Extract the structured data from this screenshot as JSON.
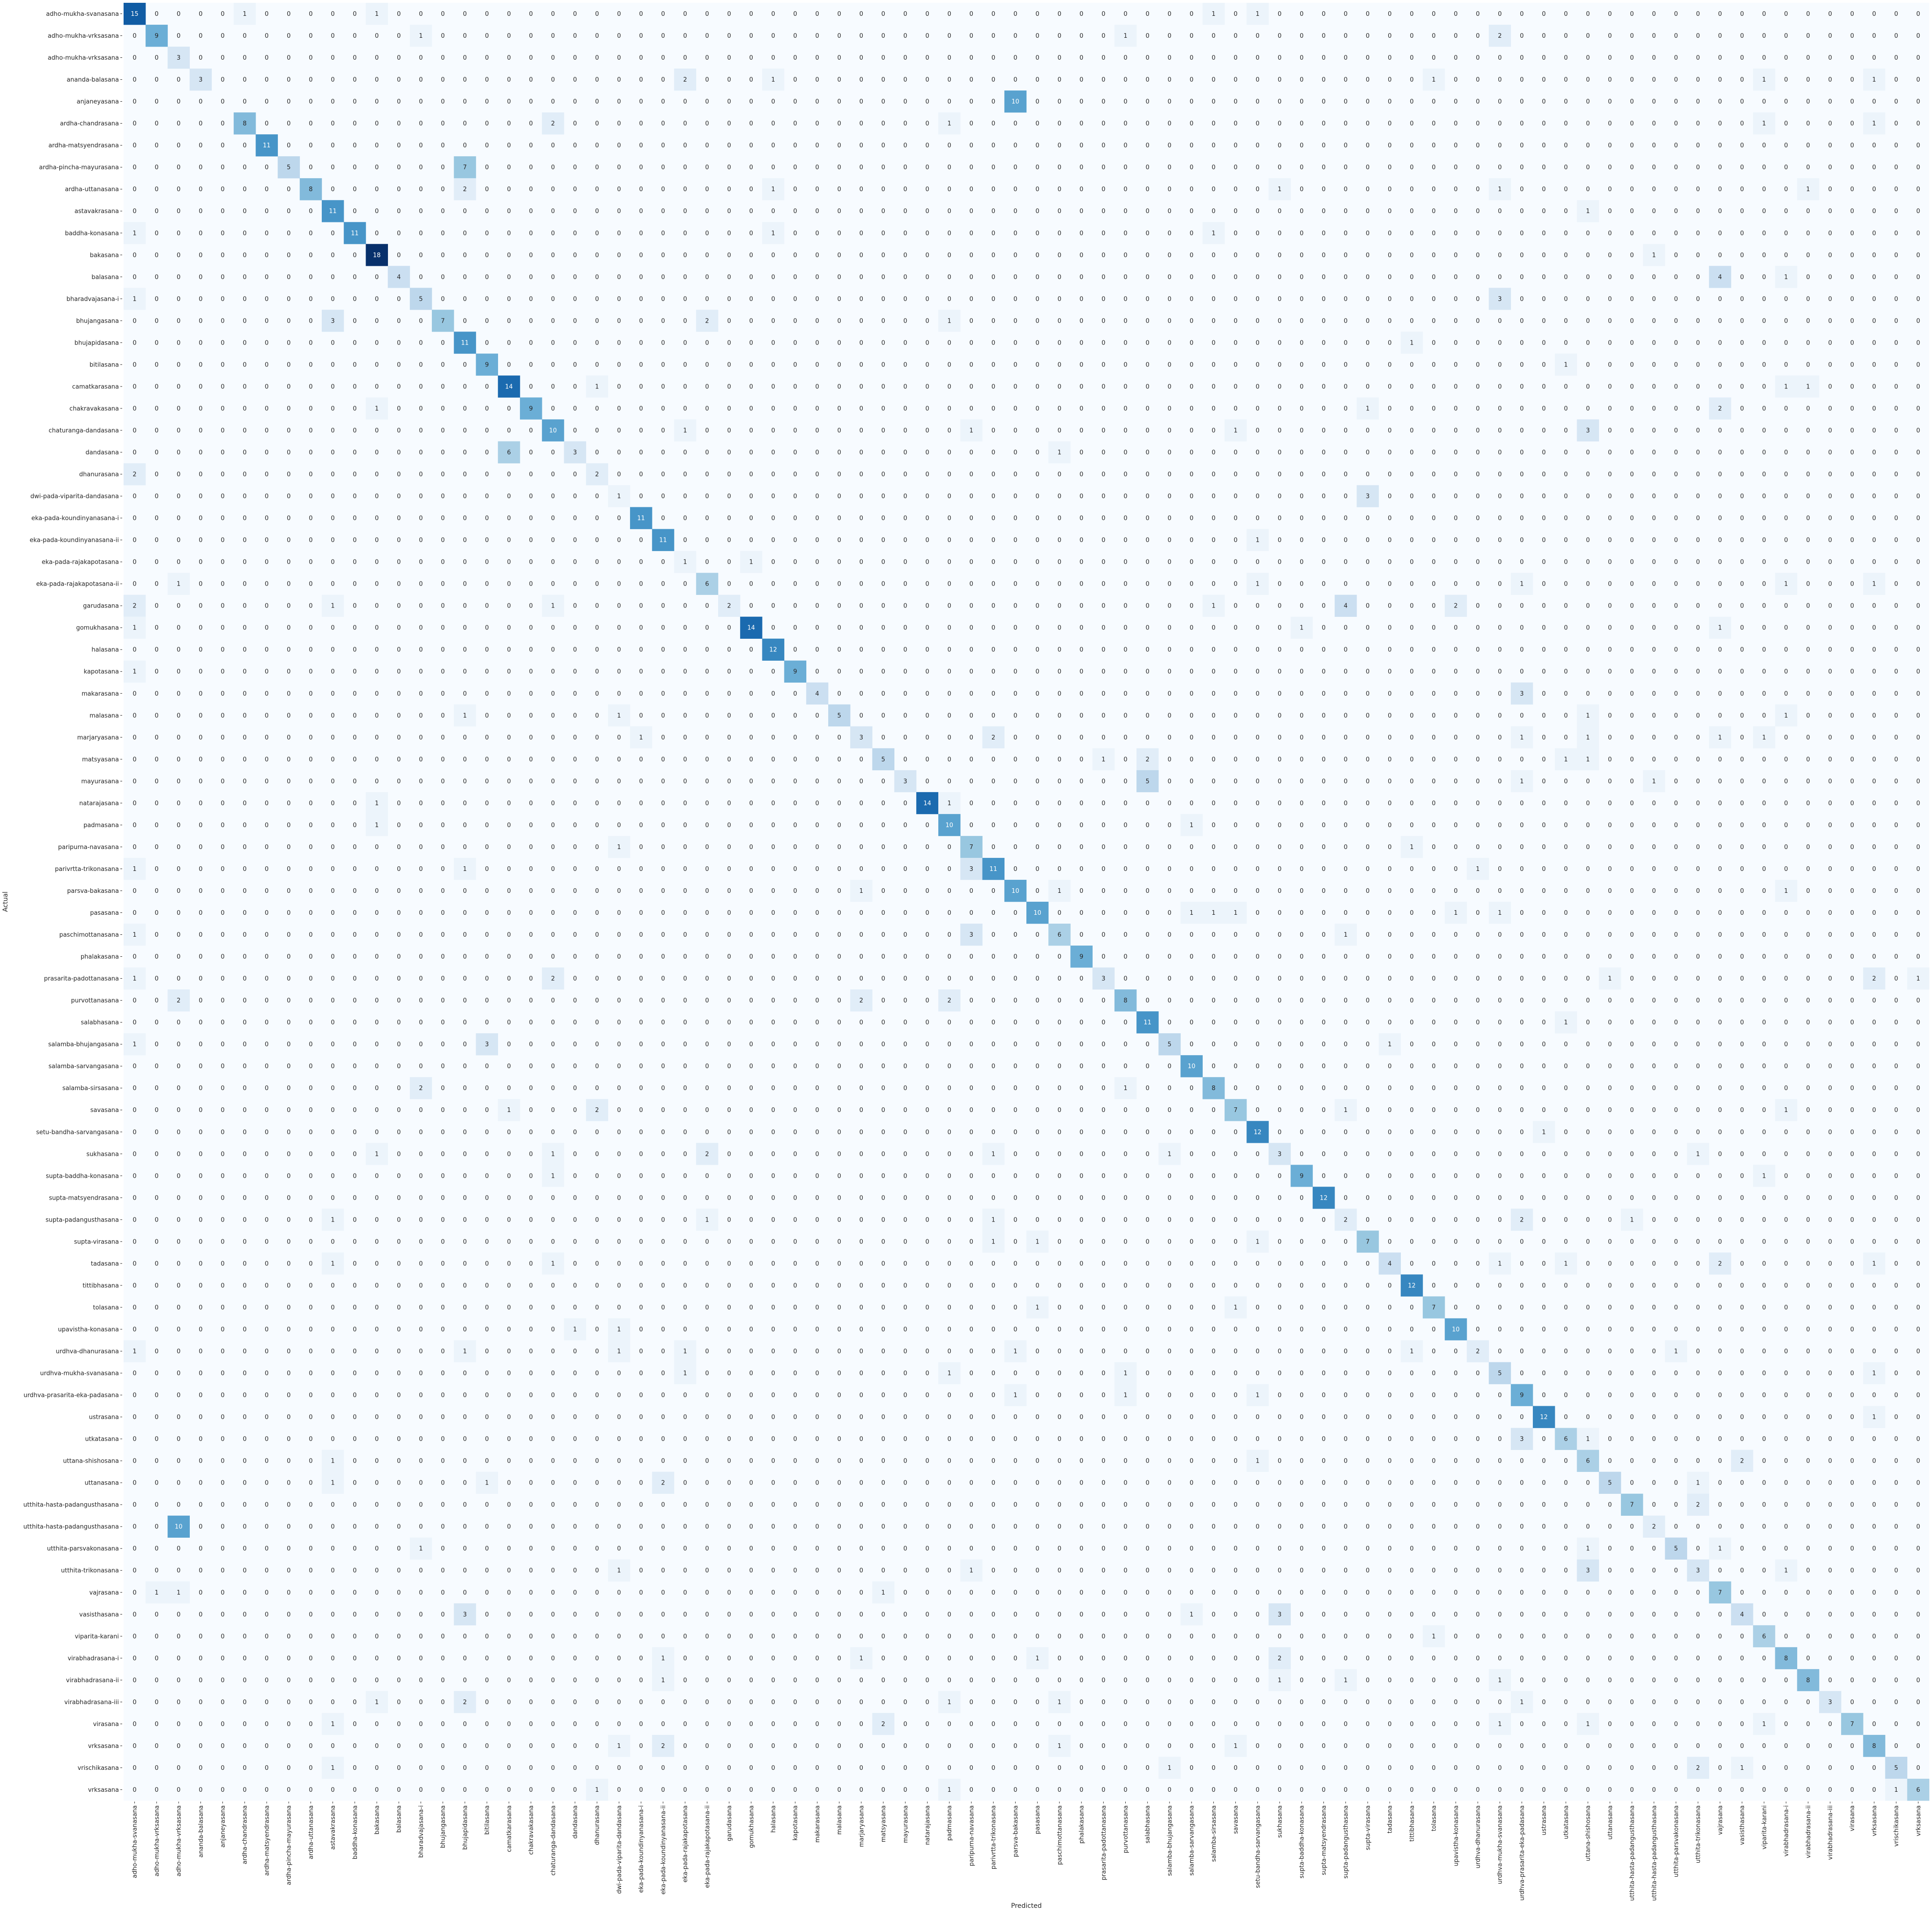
{
  "chart_data": {
    "type": "heatmap",
    "title": "",
    "xlabel": "Predicted",
    "ylabel": "Actual",
    "colormap": "Blues",
    "colors": {
      "low": "#f7fbff",
      "high": "#08306b",
      "text_dark": "#262626",
      "text_light": "#ffffff"
    },
    "vmin": 0,
    "vmax": 18,
    "categories": [
      "adho-mukha-svanasana",
      "adho-mukha-vrksasana",
      "adho-mukha-vrksasana",
      "ananda-balasana",
      "anjaneyasana",
      "ardha-chandrasana",
      "ardha-matsyendrasana",
      "ardha-pincha-mayurasana",
      "ardha-uttanasana",
      "astavakrasana",
      "baddha-konasana",
      "bakasana",
      "balasana",
      "bharadvajasana-i",
      "bhujangasana",
      "bhujapidasana",
      "bitilasana",
      "camatkarasana",
      "chakravakasana",
      "chaturanga-dandasana",
      "dandasana",
      "dhanurasana",
      "dwi-pada-viparita-dandasana",
      "eka-pada-koundinyanasana-i",
      "eka-pada-koundinyanasana-ii",
      "eka-pada-rajakapotasana",
      "eka-pada-rajakapotasana-ii",
      "garudasana",
      "gomukhasana",
      "halasana",
      "kapotasana",
      "makarasana",
      "malasana",
      "marjaryasana",
      "matsyasana",
      "mayurasana",
      "natarajasana",
      "padmasana",
      "paripurna-navasana",
      "parivrtta-trikonasana",
      "parsva-bakasana",
      "pasasana",
      "paschimottanasana",
      "phalakasana",
      "prasarita-padottanasana",
      "purvottanasana",
      "salabhasana",
      "salamba-bhujangasana",
      "salamba-sarvangasana",
      "salamba-sirsasana",
      "savasana",
      "setu-bandha-sarvangasana",
      "sukhasana",
      "supta-baddha-konasana",
      "supta-matsyendrasana",
      "supta-padangusthasana",
      "supta-virasana",
      "tadasana",
      "tittibhasana",
      "tolasana",
      "upavistha-konasana",
      "urdhva-dhanurasana",
      "urdhva-mukha-svanasana",
      "urdhva-prasarita-eka-padasana",
      "ustrasana",
      "utkatasana",
      "uttana-shishosana",
      "uttanasana",
      "utthita-hasta-padangusthasana",
      "utthita-hasta-padangusthasana",
      "utthita-parsvakonasana",
      "utthita-trikonasana",
      "vajrasana",
      "vasisthasana",
      "viparita-karani",
      "virabhadrasana-i",
      "virabhadrasana-ii",
      "virabhadrasana-iii",
      "virasana",
      "vrksasana",
      "vrischikasana",
      "vrksasana"
    ],
    "diagonal": [
      15,
      9,
      3,
      3,
      0,
      8,
      11,
      5,
      8,
      11,
      11,
      18,
      4,
      5,
      7,
      11,
      9,
      14,
      9,
      10,
      3,
      2,
      1,
      11,
      11,
      1,
      6,
      2,
      14,
      12,
      9,
      4,
      5,
      3,
      5,
      3,
      14,
      10,
      7,
      11,
      10,
      10,
      6,
      9,
      3,
      8,
      11,
      5,
      10,
      8,
      7,
      12,
      3,
      9,
      12,
      2,
      7,
      4,
      12,
      7,
      10,
      2,
      5,
      9,
      12,
      6,
      6,
      5,
      7,
      2,
      5,
      3,
      7,
      4,
      6,
      8,
      8,
      3,
      7,
      8,
      5,
      6
    ],
    "off_diagonal": [
      [
        0,
        5,
        1
      ],
      [
        0,
        11,
        1
      ],
      [
        0,
        49,
        1
      ],
      [
        0,
        51,
        1
      ],
      [
        1,
        13,
        1
      ],
      [
        1,
        45,
        1
      ],
      [
        1,
        62,
        2
      ],
      [
        2,
        92,
        10
      ],
      [
        3,
        25,
        2
      ],
      [
        3,
        29,
        1
      ],
      [
        3,
        59,
        1
      ],
      [
        3,
        74,
        1
      ],
      [
        3,
        79,
        1
      ],
      [
        4,
        40,
        10
      ],
      [
        4,
        93,
        1
      ],
      [
        5,
        19,
        2
      ],
      [
        5,
        37,
        1
      ],
      [
        5,
        74,
        1
      ],
      [
        5,
        79,
        1
      ],
      [
        5,
        100,
        1
      ],
      [
        7,
        15,
        7
      ],
      [
        8,
        15,
        2
      ],
      [
        8,
        29,
        1
      ],
      [
        8,
        52,
        1
      ],
      [
        8,
        62,
        1
      ],
      [
        8,
        76,
        1
      ],
      [
        9,
        66,
        1
      ],
      [
        10,
        0,
        1
      ],
      [
        10,
        29,
        1
      ],
      [
        10,
        49,
        1
      ],
      [
        11,
        69,
        1
      ],
      [
        12,
        72,
        4
      ],
      [
        12,
        75,
        1
      ],
      [
        12,
        85,
        1
      ],
      [
        13,
        0,
        1
      ],
      [
        13,
        62,
        3
      ],
      [
        14,
        9,
        3
      ],
      [
        14,
        26,
        2
      ],
      [
        14,
        37,
        1
      ],
      [
        15,
        58,
        1
      ],
      [
        15,
        105,
        1
      ],
      [
        16,
        65,
        1
      ],
      [
        16,
        87,
        2
      ],
      [
        16,
        89,
        1
      ],
      [
        16,
        94,
        1
      ],
      [
        16,
        100,
        1
      ],
      [
        17,
        21,
        1
      ],
      [
        17,
        75,
        1
      ],
      [
        17,
        76,
        1
      ],
      [
        18,
        11,
        1
      ],
      [
        18,
        56,
        1
      ],
      [
        18,
        72,
        2
      ],
      [
        19,
        25,
        1
      ],
      [
        19,
        38,
        1
      ],
      [
        19,
        50,
        1
      ],
      [
        19,
        66,
        3
      ],
      [
        20,
        17,
        6
      ],
      [
        20,
        42,
        1
      ],
      [
        21,
        0,
        2
      ],
      [
        21,
        83,
        5
      ],
      [
        21,
        100,
        1
      ],
      [
        21,
        104,
        4
      ],
      [
        22,
        56,
        3
      ],
      [
        22,
        83,
        5
      ],
      [
        22,
        84,
        1
      ],
      [
        22,
        87,
        2
      ],
      [
        22,
        89,
        1
      ],
      [
        22,
        100,
        1
      ],
      [
        23,
        96,
        2
      ],
      [
        24,
        51,
        1
      ],
      [
        25,
        28,
        1
      ],
      [
        25,
        87,
        1
      ],
      [
        26,
        2,
        1
      ],
      [
        26,
        51,
        1
      ],
      [
        26,
        63,
        1
      ],
      [
        26,
        75,
        1
      ],
      [
        26,
        79,
        1
      ],
      [
        27,
        0,
        2
      ],
      [
        27,
        9,
        1
      ],
      [
        27,
        19,
        1
      ],
      [
        27,
        49,
        1
      ],
      [
        27,
        55,
        4
      ],
      [
        27,
        60,
        2
      ],
      [
        28,
        0,
        1
      ],
      [
        28,
        53,
        1
      ],
      [
        28,
        72,
        1
      ],
      [
        28,
        82,
        1
      ],
      [
        30,
        0,
        1
      ],
      [
        30,
        100,
        1
      ],
      [
        31,
        63,
        3
      ],
      [
        31,
        100,
        1
      ],
      [
        31,
        104,
        2
      ],
      [
        32,
        15,
        1
      ],
      [
        32,
        22,
        1
      ],
      [
        32,
        66,
        1
      ],
      [
        32,
        75,
        1
      ],
      [
        32,
        89,
        1
      ],
      [
        33,
        23,
        1
      ],
      [
        33,
        39,
        2
      ],
      [
        33,
        63,
        1
      ],
      [
        33,
        66,
        1
      ],
      [
        33,
        72,
        1
      ],
      [
        33,
        74,
        1
      ],
      [
        33,
        87,
        1
      ],
      [
        34,
        44,
        1
      ],
      [
        34,
        46,
        2
      ],
      [
        34,
        65,
        1
      ],
      [
        34,
        66,
        1
      ],
      [
        35,
        46,
        5
      ],
      [
        35,
        63,
        1
      ],
      [
        35,
        69,
        1
      ],
      [
        35,
        83,
        1
      ],
      [
        36,
        11,
        1
      ],
      [
        36,
        37,
        1
      ],
      [
        37,
        11,
        1
      ],
      [
        37,
        48,
        1
      ],
      [
        37,
        96,
        2
      ],
      [
        38,
        22,
        1
      ],
      [
        38,
        58,
        1
      ],
      [
        38,
        93,
        1
      ],
      [
        38,
        96,
        2
      ],
      [
        39,
        0,
        1
      ],
      [
        39,
        15,
        1
      ],
      [
        39,
        38,
        3
      ],
      [
        39,
        61,
        1
      ],
      [
        39,
        104,
        1
      ],
      [
        40,
        33,
        1
      ],
      [
        40,
        42,
        1
      ],
      [
        40,
        75,
        1
      ],
      [
        40,
        85,
        1
      ],
      [
        41,
        48,
        1
      ],
      [
        41,
        49,
        1
      ],
      [
        41,
        50,
        1
      ],
      [
        41,
        60,
        1
      ],
      [
        41,
        62,
        1
      ],
      [
        42,
        0,
        1
      ],
      [
        42,
        38,
        3
      ],
      [
        42,
        55,
        1
      ],
      [
        43,
        94,
        2
      ],
      [
        44,
        0,
        1
      ],
      [
        44,
        19,
        2
      ],
      [
        44,
        67,
        1
      ],
      [
        44,
        79,
        2
      ],
      [
        44,
        81,
        1
      ],
      [
        44,
        92,
        1
      ],
      [
        45,
        2,
        2
      ],
      [
        45,
        33,
        2
      ],
      [
        45,
        37,
        2
      ],
      [
        46,
        65,
        1
      ],
      [
        46,
        86,
        1
      ],
      [
        46,
        89,
        1
      ],
      [
        47,
        0,
        1
      ],
      [
        47,
        16,
        3
      ],
      [
        47,
        57,
        1
      ],
      [
        48,
        89,
        1
      ],
      [
        48,
        92,
        1
      ],
      [
        49,
        13,
        2
      ],
      [
        49,
        45,
        1
      ],
      [
        49,
        100,
        1
      ],
      [
        50,
        17,
        1
      ],
      [
        50,
        21,
        2
      ],
      [
        50,
        55,
        1
      ],
      [
        50,
        75,
        1
      ],
      [
        51,
        64,
        1
      ],
      [
        52,
        11,
        1
      ],
      [
        52,
        19,
        1
      ],
      [
        52,
        26,
        2
      ],
      [
        52,
        39,
        1
      ],
      [
        52,
        47,
        1
      ],
      [
        52,
        71,
        1
      ],
      [
        52,
        100,
        1
      ],
      [
        53,
        19,
        1
      ],
      [
        53,
        74,
        1
      ],
      [
        54,
        100,
        1
      ],
      [
        55,
        9,
        1
      ],
      [
        55,
        26,
        1
      ],
      [
        55,
        39,
        1
      ],
      [
        55,
        63,
        2
      ],
      [
        55,
        68,
        1
      ],
      [
        55,
        83,
        1
      ],
      [
        55,
        89,
        1
      ],
      [
        56,
        39,
        1
      ],
      [
        56,
        41,
        1
      ],
      [
        56,
        51,
        1
      ],
      [
        57,
        9,
        1
      ],
      [
        57,
        19,
        1
      ],
      [
        57,
        62,
        1
      ],
      [
        57,
        65,
        1
      ],
      [
        57,
        72,
        2
      ],
      [
        57,
        79,
        1
      ],
      [
        57,
        87,
        1
      ],
      [
        57,
        100,
        1
      ],
      [
        59,
        41,
        1
      ],
      [
        59,
        50,
        1
      ],
      [
        60,
        20,
        1
      ],
      [
        60,
        22,
        1
      ],
      [
        61,
        0,
        1
      ],
      [
        61,
        15,
        1
      ],
      [
        61,
        22,
        1
      ],
      [
        61,
        25,
        1
      ],
      [
        61,
        40,
        1
      ],
      [
        61,
        58,
        1
      ],
      [
        61,
        70,
        1
      ],
      [
        61,
        86,
        4
      ],
      [
        61,
        94,
        1
      ],
      [
        62,
        25,
        1
      ],
      [
        62,
        37,
        1
      ],
      [
        62,
        45,
        1
      ],
      [
        62,
        79,
        1
      ],
      [
        62,
        89,
        1
      ],
      [
        62,
        92,
        1
      ],
      [
        62,
        100,
        1
      ],
      [
        63,
        40,
        1
      ],
      [
        63,
        51,
        1
      ],
      [
        63,
        45,
        1
      ],
      [
        63,
        89,
        1
      ],
      [
        63,
        98,
        1
      ],
      [
        64,
        79,
        1
      ],
      [
        65,
        63,
        3
      ],
      [
        65,
        66,
        1
      ],
      [
        66,
        9,
        1
      ],
      [
        66,
        51,
        1
      ],
      [
        66,
        73,
        2
      ],
      [
        66,
        87,
        2
      ],
      [
        67,
        9,
        1
      ],
      [
        67,
        16,
        1
      ],
      [
        67,
        24,
        2
      ],
      [
        67,
        71,
        1
      ],
      [
        67,
        94,
        2
      ],
      [
        67,
        100,
        1
      ],
      [
        68,
        71,
        2
      ],
      [
        68,
        83,
        1
      ],
      [
        68,
        100,
        1
      ],
      [
        69,
        2,
        10
      ],
      [
        70,
        13,
        1
      ],
      [
        70,
        66,
        1
      ],
      [
        70,
        72,
        1
      ],
      [
        70,
        82,
        1
      ],
      [
        70,
        88,
        2
      ],
      [
        71,
        22,
        1
      ],
      [
        71,
        38,
        1
      ],
      [
        71,
        66,
        3
      ],
      [
        71,
        84,
        1
      ],
      [
        71,
        75,
        1
      ],
      [
        71,
        89,
        1
      ],
      [
        71,
        100,
        1
      ],
      [
        72,
        1,
        1
      ],
      [
        72,
        2,
        1
      ],
      [
        72,
        34,
        1
      ],
      [
        73,
        15,
        3
      ],
      [
        73,
        48,
        1
      ],
      [
        73,
        52,
        3
      ],
      [
        74,
        59,
        1
      ],
      [
        74,
        83,
        1
      ],
      [
        74,
        85,
        1
      ],
      [
        74,
        90,
        1
      ],
      [
        74,
        91,
        2
      ],
      [
        75,
        24,
        1
      ],
      [
        75,
        33,
        1
      ],
      [
        75,
        41,
        1
      ],
      [
        75,
        52,
        2
      ],
      [
        76,
        24,
        1
      ],
      [
        76,
        52,
        1
      ],
      [
        76,
        55,
        1
      ],
      [
        76,
        62,
        1
      ],
      [
        77,
        11,
        1
      ],
      [
        77,
        15,
        2
      ],
      [
        77,
        37,
        1
      ],
      [
        77,
        42,
        1
      ],
      [
        77,
        63,
        1
      ],
      [
        77,
        88,
        2
      ],
      [
        77,
        96,
        2
      ],
      [
        77,
        101,
        1
      ],
      [
        78,
        9,
        1
      ],
      [
        78,
        34,
        2
      ],
      [
        78,
        62,
        1
      ],
      [
        78,
        66,
        1
      ],
      [
        78,
        74,
        1
      ],
      [
        79,
        22,
        1
      ],
      [
        79,
        24,
        2
      ],
      [
        79,
        42,
        1
      ],
      [
        79,
        50,
        1
      ],
      [
        80,
        9,
        1
      ],
      [
        80,
        47,
        1
      ],
      [
        80,
        71,
        2
      ],
      [
        80,
        73,
        1
      ],
      [
        80,
        90,
        1
      ],
      [
        81,
        21,
        1
      ],
      [
        81,
        37,
        1
      ],
      [
        81,
        80,
        1
      ],
      [
        81,
        98,
        1
      ]
    ]
  }
}
